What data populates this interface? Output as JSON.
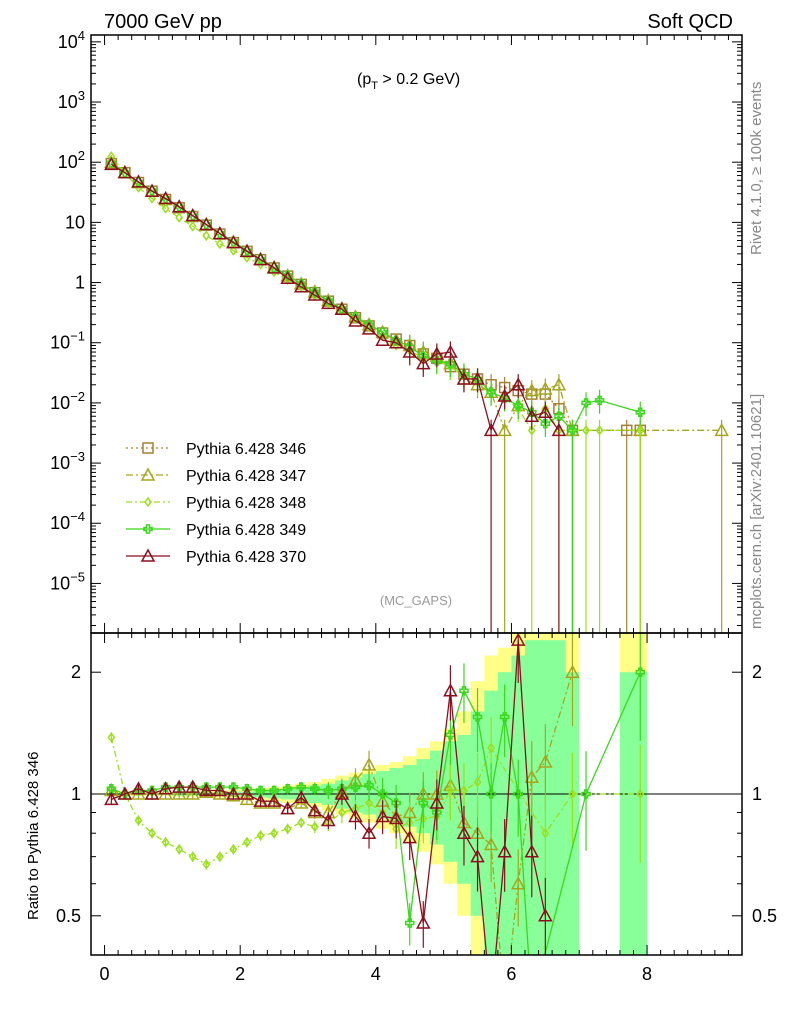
{
  "header": {
    "left_title": "7000 GeV pp",
    "right_title": "Soft QCD"
  },
  "side_labels": {
    "rivet": "Rivet 4.1.0, ≥ 100k events",
    "mcplots": "mcplots.cern.ch [arXiv:2401.10621]"
  },
  "annotation": {
    "cut": "(p_T > 0.2 GeV)",
    "cut_main": "(p",
    "cut_sub": "T",
    "cut_rest": " > 0.2 GeV)",
    "analysis": "(MC_GAPS)"
  },
  "colors": {
    "s346": "#a57f35",
    "s347": "#a6a61d",
    "s348": "#9be01c",
    "s349": "#3ad81c",
    "s370": "#8b0f1f",
    "band_yellow": "#ffff88",
    "band_green": "#88ff99"
  },
  "chart_data": [
    {
      "type": "line",
      "title": "7000 GeV pp — Soft QCD",
      "yscale": "log",
      "xlim": [
        -0.2,
        9.4
      ],
      "ylim": [
        1.5e-06,
        13000.0
      ],
      "xlabel": "",
      "ylabel": "",
      "y_ticks": [
        {
          "v": 10000.0,
          "base": "10",
          "exp": "4"
        },
        {
          "v": 1000.0,
          "base": "10",
          "exp": "3"
        },
        {
          "v": 100.0,
          "base": "10",
          "exp": "2"
        },
        {
          "v": 10,
          "base": "10",
          "exp": ""
        },
        {
          "v": 1,
          "base": "1",
          "exp": ""
        },
        {
          "v": 0.1,
          "base": "10",
          "exp": "−1"
        },
        {
          "v": 0.01,
          "base": "10",
          "exp": "−2"
        },
        {
          "v": 0.001,
          "base": "10",
          "exp": "−3"
        },
        {
          "v": 0.0001,
          "base": "10",
          "exp": "−4"
        },
        {
          "v": 1e-05,
          "base": "10",
          "exp": "−5"
        }
      ],
      "series": [
        {
          "name": "Pythia 6.428 346",
          "style": "dotted",
          "marker": "square",
          "x": [
            0.1,
            0.3,
            0.5,
            0.7,
            0.9,
            1.1,
            1.3,
            1.5,
            1.7,
            1.9,
            2.1,
            2.3,
            2.5,
            2.7,
            2.9,
            3.1,
            3.3,
            3.5,
            3.7,
            3.9,
            4.1,
            4.3,
            4.5,
            4.7,
            4.9,
            5.1,
            5.3,
            5.5,
            5.7,
            5.9,
            6.1,
            6.3,
            6.5,
            6.7,
            6.9,
            7.7,
            7.9
          ],
          "values": [
            95,
            67,
            46,
            33,
            24,
            17.5,
            12.5,
            9.0,
            6.4,
            4.6,
            3.3,
            2.4,
            1.75,
            1.28,
            0.93,
            0.68,
            0.49,
            0.36,
            0.26,
            0.19,
            0.145,
            0.115,
            0.09,
            0.065,
            0.055,
            0.04,
            0.03,
            0.025,
            0.02,
            0.018,
            0.016,
            0.014,
            0.014,
            0.008,
            0.0035,
            0.0035,
            0.0035
          ]
        },
        {
          "name": "Pythia 6.428 347",
          "style": "dashdot",
          "marker": "triangle",
          "x": [
            0.1,
            0.3,
            0.5,
            0.7,
            0.9,
            1.1,
            1.3,
            1.5,
            1.7,
            1.9,
            2.1,
            2.3,
            2.5,
            2.7,
            2.9,
            3.1,
            3.3,
            3.5,
            3.7,
            3.9,
            4.1,
            4.3,
            4.5,
            4.7,
            4.9,
            5.1,
            5.3,
            5.5,
            5.7,
            5.9,
            6.1,
            6.3,
            6.5,
            6.7,
            6.9,
            7.9,
            9.1
          ],
          "values": [
            100,
            68,
            46,
            33,
            24,
            18,
            12.8,
            9.2,
            6.5,
            4.7,
            3.35,
            2.45,
            1.8,
            1.3,
            0.95,
            0.7,
            0.5,
            0.37,
            0.27,
            0.2,
            0.15,
            0.11,
            0.09,
            0.07,
            0.06,
            0.045,
            0.025,
            0.02,
            0.015,
            0.0035,
            0.009,
            0.016,
            0.017,
            0.02,
            0.0035,
            0.0035,
            0.0035
          ]
        },
        {
          "name": "Pythia 6.428 348",
          "style": "dashdot",
          "marker": "diamond",
          "x": [
            0.1,
            0.3,
            0.5,
            0.7,
            0.9,
            1.1,
            1.3,
            1.5,
            1.7,
            1.9,
            2.1,
            2.3,
            2.5,
            2.7,
            2.9,
            3.1,
            3.3,
            3.5,
            3.7,
            3.9,
            4.1,
            4.3,
            4.5,
            4.7,
            4.9,
            5.1,
            5.3,
            5.5,
            5.7,
            5.9,
            6.1,
            6.3,
            6.5,
            6.7,
            6.9,
            7.1,
            7.3,
            7.9
          ],
          "values": [
            125,
            65,
            38,
            25,
            17,
            12,
            8.6,
            6.0,
            4.4,
            3.4,
            2.6,
            2.0,
            1.5,
            1.1,
            0.85,
            0.6,
            0.45,
            0.34,
            0.25,
            0.18,
            0.13,
            0.09,
            0.075,
            0.055,
            0.05,
            0.04,
            0.028,
            0.022,
            0.015,
            0.012,
            0.008,
            0.0035,
            0.008,
            0.0035,
            0.0035,
            0.0035,
            0.0035,
            0.0035
          ]
        },
        {
          "name": "Pythia 6.428 349",
          "style": "solid",
          "marker": "cross",
          "x": [
            0.1,
            0.3,
            0.5,
            0.7,
            0.9,
            1.1,
            1.3,
            1.5,
            1.7,
            1.9,
            2.1,
            2.3,
            2.5,
            2.7,
            2.9,
            3.1,
            3.3,
            3.5,
            3.7,
            3.9,
            4.1,
            4.3,
            4.5,
            4.7,
            4.9,
            5.1,
            5.3,
            5.5,
            5.7,
            5.9,
            6.1,
            6.3,
            6.5,
            6.7,
            6.9,
            7.1,
            7.3,
            7.9
          ],
          "values": [
            98,
            67,
            47,
            34,
            25,
            18.2,
            13,
            9.3,
            6.6,
            4.8,
            3.4,
            2.45,
            1.8,
            1.32,
            0.96,
            0.7,
            0.5,
            0.37,
            0.27,
            0.2,
            0.15,
            0.11,
            0.085,
            0.06,
            0.05,
            0.045,
            0.03,
            0.025,
            0.015,
            0.012,
            0.009,
            0.007,
            0.0045,
            0.006,
            0.0035,
            0.01,
            0.011,
            0.007
          ]
        },
        {
          "name": "Pythia 6.428 370",
          "style": "solid",
          "marker": "triangle-open",
          "x": [
            0.1,
            0.3,
            0.5,
            0.7,
            0.9,
            1.1,
            1.3,
            1.5,
            1.7,
            1.9,
            2.1,
            2.3,
            2.5,
            2.7,
            2.9,
            3.1,
            3.3,
            3.5,
            3.7,
            3.9,
            4.1,
            4.3,
            4.5,
            4.7,
            4.9,
            5.1,
            5.3,
            5.5,
            5.7,
            5.9,
            6.1,
            6.3,
            6.5,
            6.7
          ],
          "values": [
            92,
            67,
            47,
            33,
            25,
            18.2,
            13,
            9.2,
            6.5,
            4.6,
            3.3,
            2.4,
            1.75,
            1.18,
            0.85,
            0.62,
            0.45,
            0.36,
            0.23,
            0.17,
            0.11,
            0.1,
            0.07,
            0.045,
            0.065,
            0.07,
            0.025,
            0.025,
            0.0035,
            0.013,
            0.02,
            0.006,
            0.007,
            0.0035
          ]
        }
      ]
    },
    {
      "type": "line",
      "title": "Ratio to Pythia 6.428 346",
      "yscale": "log",
      "xlim": [
        -0.2,
        9.4
      ],
      "ylim": [
        0.4,
        2.5
      ],
      "ylabel": "Ratio to Pythia 6.428 346",
      "x_ticks": [
        "0",
        "2",
        "4",
        "6",
        "8"
      ],
      "y_ticks": [
        "0.5",
        "1",
        "2"
      ],
      "reference": 1,
      "bands_x": [
        0.0,
        0.2,
        0.4,
        0.6,
        0.8,
        1.0,
        1.2,
        1.4,
        1.6,
        1.8,
        2.0,
        2.2,
        2.4,
        2.6,
        2.8,
        3.0,
        3.2,
        3.4,
        3.6,
        3.8,
        4.0,
        4.2,
        4.4,
        4.6,
        4.8,
        5.0,
        5.2,
        5.4,
        5.6,
        5.8,
        6.0,
        6.2,
        6.4,
        6.6
      ],
      "band_yellow": [
        [
          0.99,
          1.01
        ],
        [
          0.99,
          1.01
        ],
        [
          0.99,
          1.01
        ],
        [
          0.99,
          1.01
        ],
        [
          0.99,
          1.01
        ],
        [
          0.985,
          1.015
        ],
        [
          0.985,
          1.015
        ],
        [
          0.98,
          1.02
        ],
        [
          0.98,
          1.02
        ],
        [
          0.975,
          1.025
        ],
        [
          0.97,
          1.03
        ],
        [
          0.965,
          1.035
        ],
        [
          0.96,
          1.04
        ],
        [
          0.95,
          1.05
        ],
        [
          0.94,
          1.06
        ],
        [
          0.93,
          1.07
        ],
        [
          0.91,
          1.09
        ],
        [
          0.89,
          1.11
        ],
        [
          0.87,
          1.13
        ],
        [
          0.85,
          1.15
        ],
        [
          0.82,
          1.18
        ],
        [
          0.8,
          1.2
        ],
        [
          0.76,
          1.24
        ],
        [
          0.72,
          1.3
        ],
        [
          0.67,
          1.35
        ],
        [
          0.6,
          1.45
        ],
        [
          0.5,
          1.6
        ],
        [
          0.4,
          1.9
        ],
        [
          0.3,
          2.2
        ],
        [
          0.3,
          2.3
        ],
        [
          0.3,
          2.5
        ],
        [
          0.3,
          2.5
        ],
        [
          0.3,
          2.5
        ],
        [
          0.3,
          2.5
        ]
      ],
      "band_green": [
        [
          0.995,
          1.005
        ],
        [
          0.995,
          1.005
        ],
        [
          0.995,
          1.005
        ],
        [
          0.995,
          1.005
        ],
        [
          0.995,
          1.005
        ],
        [
          0.99,
          1.01
        ],
        [
          0.99,
          1.01
        ],
        [
          0.99,
          1.01
        ],
        [
          0.99,
          1.01
        ],
        [
          0.985,
          1.015
        ],
        [
          0.985,
          1.015
        ],
        [
          0.98,
          1.02
        ],
        [
          0.975,
          1.025
        ],
        [
          0.97,
          1.03
        ],
        [
          0.96,
          1.04
        ],
        [
          0.95,
          1.05
        ],
        [
          0.94,
          1.06
        ],
        [
          0.92,
          1.08
        ],
        [
          0.9,
          1.1
        ],
        [
          0.89,
          1.12
        ],
        [
          0.87,
          1.14
        ],
        [
          0.85,
          1.16
        ],
        [
          0.83,
          1.18
        ],
        [
          0.8,
          1.22
        ],
        [
          0.75,
          1.28
        ],
        [
          0.68,
          1.35
        ],
        [
          0.6,
          1.4
        ],
        [
          0.5,
          1.6
        ],
        [
          0.4,
          1.8
        ],
        [
          0.35,
          2.0
        ],
        [
          0.3,
          2.2
        ],
        [
          0.3,
          2.4
        ],
        [
          0.3,
          2.4
        ],
        [
          0.3,
          2.4
        ]
      ],
      "series": [
        {
          "name": "Pythia 6.428 347",
          "x": [
            0.1,
            0.3,
            0.5,
            0.7,
            0.9,
            1.1,
            1.3,
            1.5,
            1.7,
            1.9,
            2.1,
            2.3,
            2.5,
            2.7,
            2.9,
            3.1,
            3.3,
            3.5,
            3.7,
            3.9,
            4.1,
            4.3,
            4.5,
            4.7,
            4.9,
            5.1,
            5.3,
            5.5,
            5.7,
            5.9,
            6.1,
            6.3,
            6.5,
            6.9
          ],
          "values": [
            1.02,
            1.0,
            1.0,
            1.0,
            1.0,
            1.0,
            1.0,
            1.01,
            1.0,
            0.99,
            0.97,
            0.95,
            0.95,
            0.92,
            0.95,
            0.9,
            0.9,
            1.01,
            1.08,
            1.18,
            0.96,
            0.88,
            0.9,
            1.0,
            1.0,
            1.05,
            0.85,
            0.8,
            0.75,
            0.3,
            0.6,
            1.1,
            1.2,
            2.0
          ]
        },
        {
          "name": "Pythia 6.428 348",
          "x": [
            0.1,
            0.3,
            0.5,
            0.7,
            0.9,
            1.1,
            1.3,
            1.5,
            1.7,
            1.9,
            2.1,
            2.3,
            2.5,
            2.7,
            2.9,
            3.1,
            3.3,
            3.5,
            3.7,
            3.9,
            4.1,
            4.3,
            4.5,
            4.7,
            4.9,
            5.1,
            5.3,
            5.5,
            5.7,
            6.5,
            6.9,
            7.9
          ],
          "values": [
            1.38,
            1.0,
            0.86,
            0.8,
            0.76,
            0.73,
            0.7,
            0.67,
            0.7,
            0.73,
            0.76,
            0.79,
            0.8,
            0.82,
            0.85,
            0.83,
            0.85,
            0.9,
            0.92,
            0.95,
            0.9,
            0.82,
            0.85,
            0.87,
            0.88,
            1.02,
            1.02,
            1.07,
            1.3,
            0.8,
            1.0,
            1.0
          ]
        },
        {
          "name": "Pythia 6.428 349",
          "x": [
            0.1,
            0.3,
            0.5,
            0.7,
            0.9,
            1.1,
            1.3,
            1.5,
            1.7,
            1.9,
            2.1,
            2.3,
            2.5,
            2.7,
            2.9,
            3.1,
            3.3,
            3.5,
            3.7,
            3.9,
            4.1,
            4.3,
            4.5,
            4.7,
            4.9,
            5.1,
            5.3,
            5.5,
            5.7,
            5.9,
            6.1,
            6.3,
            7.1,
            7.9
          ],
          "values": [
            1.03,
            1.0,
            1.02,
            1.02,
            1.04,
            1.04,
            1.04,
            1.04,
            1.04,
            1.04,
            1.03,
            1.02,
            1.02,
            1.03,
            1.04,
            1.03,
            1.02,
            1.03,
            1.04,
            1.05,
            1.0,
            0.95,
            0.48,
            0.95,
            0.9,
            1.4,
            1.8,
            1.55,
            1.0,
            1.55,
            1.0,
            0.3,
            1.0,
            2.0
          ]
        },
        {
          "name": "Pythia 6.428 370",
          "x": [
            0.1,
            0.3,
            0.5,
            0.7,
            0.9,
            1.1,
            1.3,
            1.5,
            1.7,
            1.9,
            2.1,
            2.3,
            2.5,
            2.7,
            2.9,
            3.1,
            3.3,
            3.5,
            3.7,
            3.9,
            4.1,
            4.3,
            4.5,
            4.7,
            4.9,
            5.1,
            5.3,
            5.5,
            5.7,
            5.9,
            6.1,
            6.3,
            6.5
          ],
          "values": [
            0.97,
            1.0,
            1.03,
            1.0,
            1.03,
            1.04,
            1.04,
            1.02,
            1.02,
            1.0,
            1.0,
            0.96,
            0.96,
            0.92,
            0.98,
            0.91,
            0.86,
            1.0,
            0.88,
            0.8,
            0.88,
            0.87,
            0.78,
            0.48,
            0.95,
            1.8,
            0.8,
            0.7,
            0.3,
            0.72,
            2.4,
            0.72,
            0.5
          ]
        }
      ]
    }
  ],
  "legend": [
    {
      "label": "Pythia 6.428 346"
    },
    {
      "label": "Pythia 6.428 347"
    },
    {
      "label": "Pythia 6.428 348"
    },
    {
      "label": "Pythia 6.428 349"
    },
    {
      "label": "Pythia 6.428 370"
    }
  ]
}
